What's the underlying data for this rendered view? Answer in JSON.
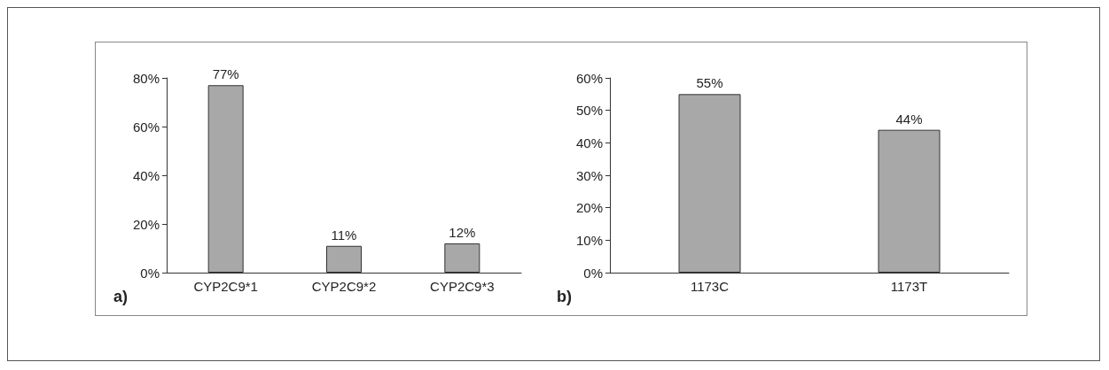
{
  "chart_data": [
    {
      "type": "bar",
      "categories": [
        "CYP2C9*1",
        "CYP2C9*2",
        "CYP2C9*3"
      ],
      "values": [
        77,
        11,
        12
      ],
      "color": "#a8a8a8",
      "value_labels": [
        "77%",
        "11%",
        "12%"
      ],
      "ylim": [
        0,
        80
      ],
      "yticks": [
        {
          "value": 0,
          "label": "0%"
        },
        {
          "value": 20,
          "label": "20%"
        },
        {
          "value": 40,
          "label": "40%"
        },
        {
          "value": 60,
          "label": "60%"
        },
        {
          "value": 80,
          "label": "80%"
        }
      ],
      "grid": false,
      "annotations": [
        "a)"
      ]
    },
    {
      "type": "bar",
      "categories": [
        "1173C",
        "1173T"
      ],
      "values": [
        55,
        44
      ],
      "color": "#a8a8a8",
      "value_labels": [
        "55%",
        "44%"
      ],
      "ylim": [
        0,
        60
      ],
      "yticks": [
        {
          "value": 0,
          "label": "0%"
        },
        {
          "value": 10,
          "label": "10%"
        },
        {
          "value": 20,
          "label": "20%"
        },
        {
          "value": 30,
          "label": "30%"
        },
        {
          "value": 40,
          "label": "40%"
        },
        {
          "value": 50,
          "label": "50%"
        },
        {
          "value": 60,
          "label": "60%"
        }
      ],
      "grid": false,
      "annotations": [
        "b)"
      ]
    }
  ]
}
